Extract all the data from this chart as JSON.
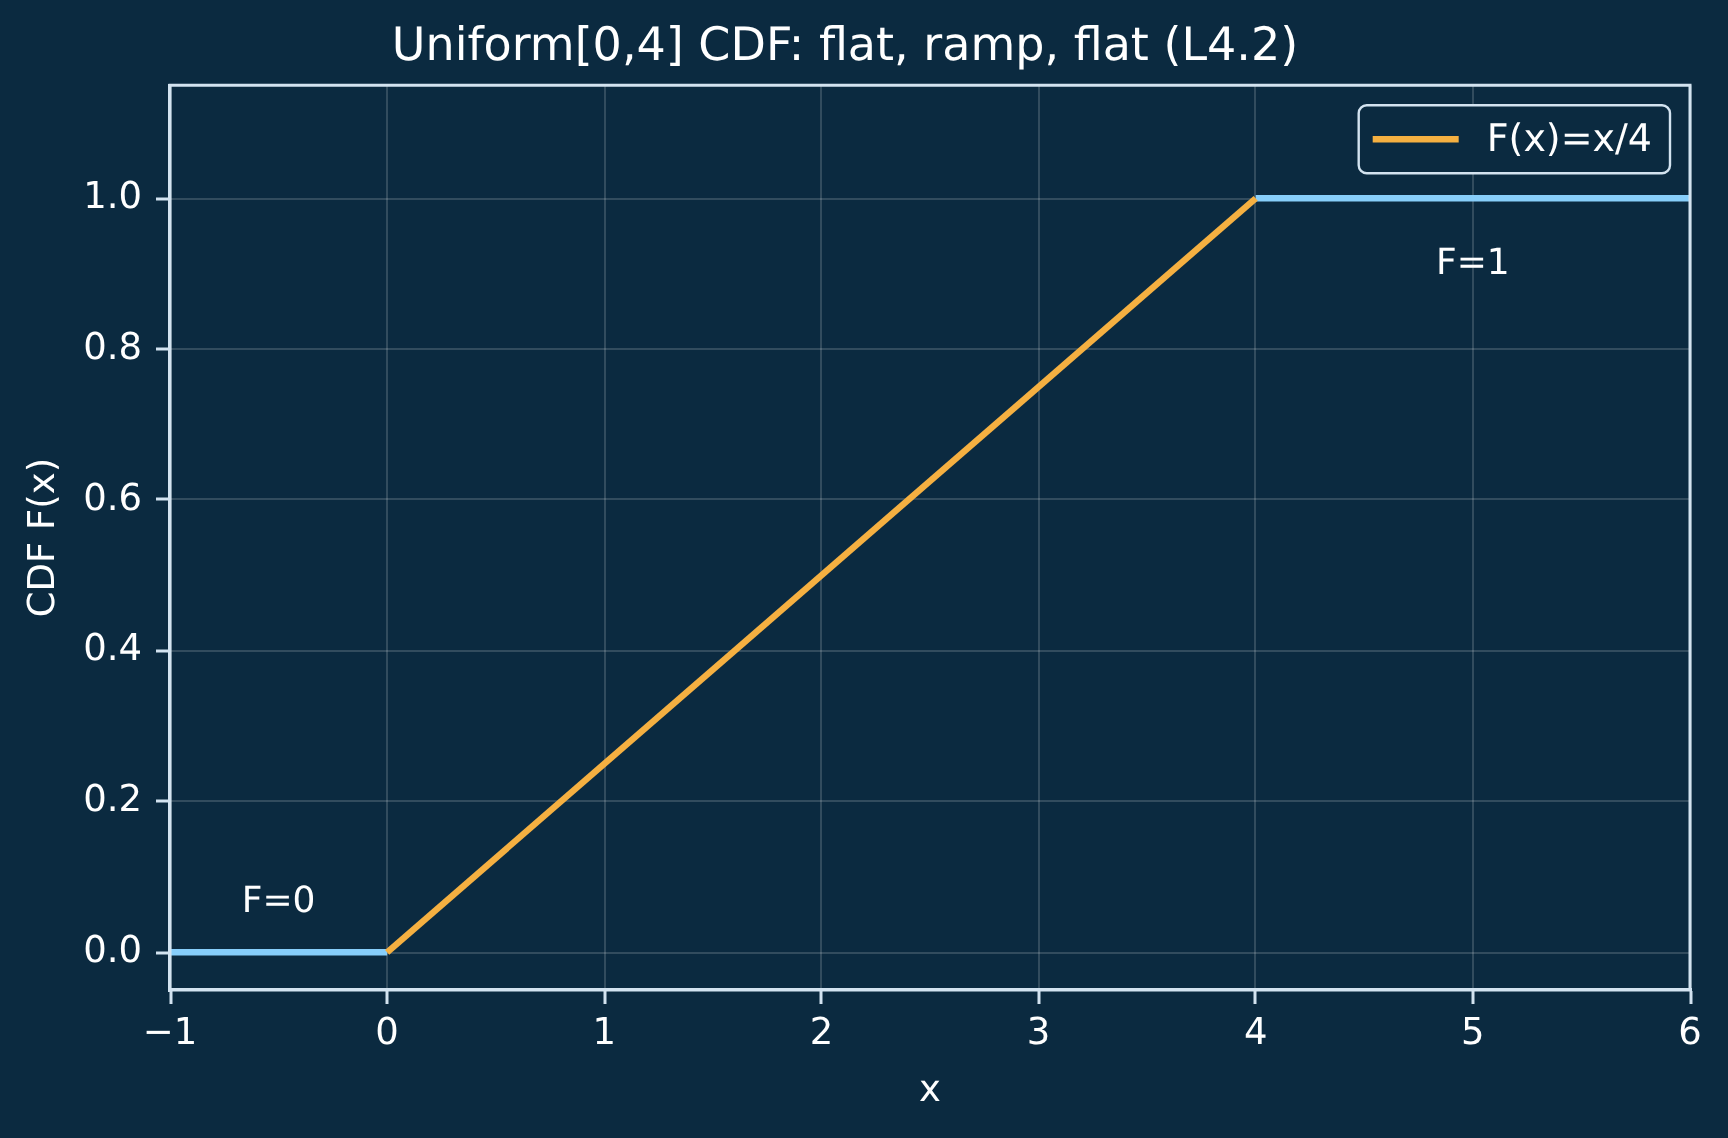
{
  "chart_data": {
    "type": "line",
    "title": "Uniform[0,4] CDF: flat, ramp, flat (L4.2)",
    "xlabel": "x",
    "ylabel": "CDF F(x)",
    "series": [
      {
        "color": "#87cefa",
        "x": [
          -1,
          0
        ],
        "values": [
          0,
          0
        ]
      },
      {
        "color": "#87cefa",
        "x": [
          4,
          6
        ],
        "values": [
          1,
          1
        ]
      },
      {
        "name": "F(x)=x/4",
        "color": "#f5b041",
        "x": [
          0,
          4
        ],
        "values": [
          0,
          1
        ]
      }
    ],
    "xlim": [
      -1,
      6
    ],
    "ylim": [
      -0.05,
      1.15
    ],
    "xticks": [
      {
        "value": -1,
        "label": "−1"
      },
      0,
      1,
      2,
      3,
      4,
      5,
      6
    ],
    "yticks": [
      {
        "value": 0,
        "label": "0.0"
      },
      0.2,
      0.4,
      0.6,
      0.8,
      {
        "value": 1,
        "label": "1.0"
      }
    ],
    "grid": true,
    "legend": "top right",
    "marker": "none",
    "annotations": [
      "F=0",
      "F=1"
    ]
  }
}
